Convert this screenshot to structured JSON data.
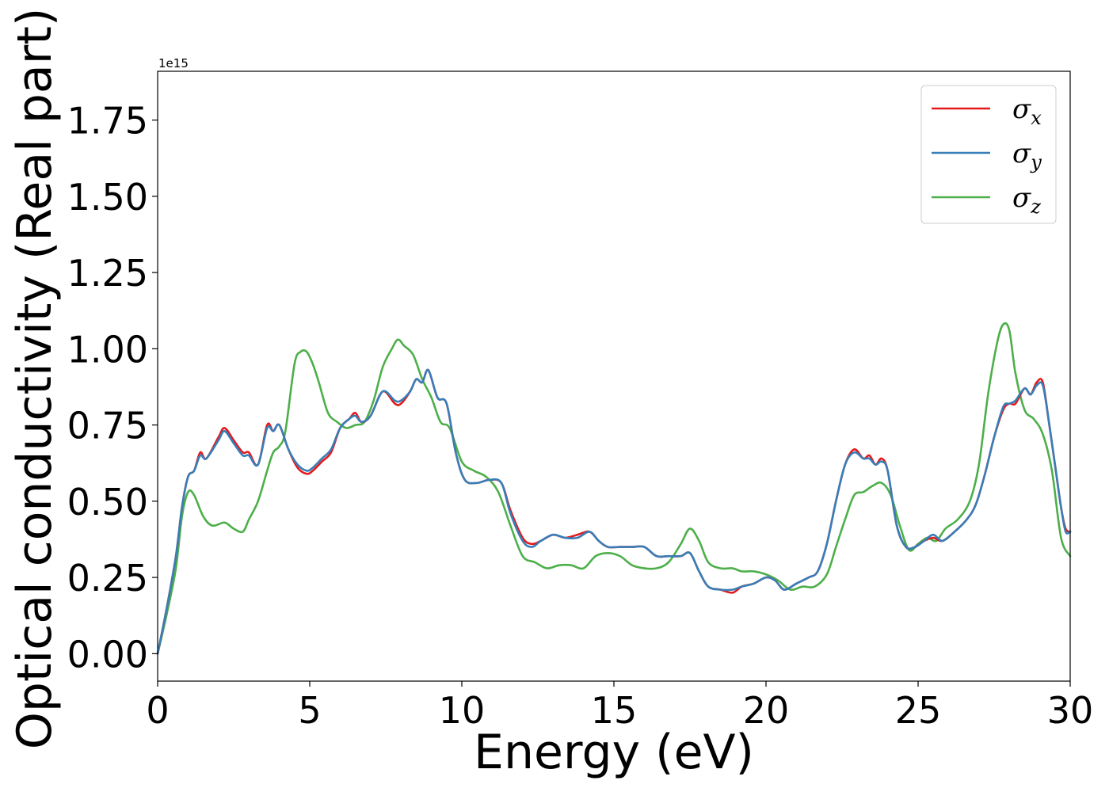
{
  "chart_data": {
    "type": "line",
    "xlabel": "Energy (eV)",
    "ylabel": "Optical conductivity (Real part)",
    "offset_label": "1e15",
    "xlim": [
      0,
      30
    ],
    "ylim": [
      -0.09,
      1.91
    ],
    "xticks": [
      0,
      5,
      10,
      15,
      20,
      25,
      30
    ],
    "xtick_labels": [
      "0",
      "5",
      "10",
      "15",
      "20",
      "25",
      "30"
    ],
    "yticks": [
      0.0,
      0.25,
      0.5,
      0.75,
      1.0,
      1.25,
      1.5,
      1.75
    ],
    "ytick_labels": [
      "0.00",
      "0.25",
      "0.50",
      "0.75",
      "1.00",
      "1.25",
      "1.50",
      "1.75"
    ],
    "grid": false,
    "legend_position": "top-right",
    "series": [
      {
        "name": "σx",
        "legend_base": "σ",
        "legend_sub": "x",
        "color": "#e41a1c",
        "x": [
          0,
          0.3,
          0.6,
          0.8,
          1.0,
          1.2,
          1.4,
          1.6,
          2.0,
          2.2,
          2.5,
          2.8,
          3.0,
          3.3,
          3.6,
          3.8,
          4.0,
          4.3,
          4.6,
          4.9,
          5.1,
          5.4,
          5.7,
          6.0,
          6.3,
          6.5,
          6.7,
          7.0,
          7.4,
          7.8,
          8.0,
          8.3,
          8.5,
          8.7,
          8.9,
          9.2,
          9.5,
          9.8,
          10.1,
          10.5,
          10.9,
          11.3,
          11.6,
          12.0,
          12.3,
          12.6,
          13.0,
          13.4,
          13.8,
          14.2,
          14.5,
          14.8,
          15.2,
          15.6,
          16.0,
          16.4,
          16.8,
          17.2,
          17.5,
          17.8,
          18.1,
          18.5,
          18.9,
          19.2,
          19.6,
          20.0,
          20.3,
          20.6,
          21.0,
          21.4,
          21.7,
          22.0,
          22.3,
          22.6,
          22.9,
          23.2,
          23.4,
          23.6,
          23.8,
          24.0,
          24.3,
          24.6,
          24.9,
          25.2,
          25.5,
          25.8,
          26.2,
          26.6,
          26.9,
          27.2,
          27.5,
          27.8,
          28.0,
          28.2,
          28.5,
          28.7,
          28.9,
          29.1,
          29.3,
          29.5,
          29.7,
          29.85,
          30.0
        ],
        "values": [
          0.0,
          0.15,
          0.32,
          0.48,
          0.58,
          0.6,
          0.66,
          0.64,
          0.71,
          0.74,
          0.7,
          0.66,
          0.66,
          0.62,
          0.75,
          0.73,
          0.75,
          0.67,
          0.61,
          0.59,
          0.6,
          0.63,
          0.66,
          0.74,
          0.77,
          0.79,
          0.76,
          0.78,
          0.86,
          0.82,
          0.82,
          0.86,
          0.9,
          0.89,
          0.93,
          0.84,
          0.82,
          0.66,
          0.57,
          0.56,
          0.57,
          0.56,
          0.47,
          0.38,
          0.36,
          0.37,
          0.39,
          0.38,
          0.39,
          0.4,
          0.37,
          0.35,
          0.35,
          0.35,
          0.35,
          0.32,
          0.32,
          0.32,
          0.33,
          0.27,
          0.22,
          0.21,
          0.2,
          0.22,
          0.23,
          0.25,
          0.24,
          0.21,
          0.23,
          0.25,
          0.27,
          0.36,
          0.5,
          0.62,
          0.67,
          0.64,
          0.65,
          0.62,
          0.64,
          0.6,
          0.42,
          0.35,
          0.35,
          0.37,
          0.38,
          0.37,
          0.4,
          0.44,
          0.49,
          0.59,
          0.71,
          0.8,
          0.82,
          0.82,
          0.87,
          0.85,
          0.89,
          0.89,
          0.76,
          0.62,
          0.48,
          0.41,
          0.4
        ]
      },
      {
        "name": "σy",
        "legend_base": "σ",
        "legend_sub": "y",
        "color": "#377eb8",
        "x": [
          0,
          0.3,
          0.6,
          0.8,
          1.0,
          1.2,
          1.4,
          1.6,
          2.0,
          2.2,
          2.5,
          2.8,
          3.0,
          3.3,
          3.6,
          3.8,
          4.0,
          4.3,
          4.6,
          4.9,
          5.1,
          5.4,
          5.7,
          6.0,
          6.3,
          6.5,
          6.7,
          7.0,
          7.4,
          7.8,
          8.0,
          8.3,
          8.5,
          8.7,
          8.9,
          9.2,
          9.5,
          9.8,
          10.1,
          10.5,
          10.9,
          11.3,
          11.6,
          12.0,
          12.3,
          12.6,
          13.0,
          13.4,
          13.8,
          14.2,
          14.5,
          14.8,
          15.2,
          15.6,
          16.0,
          16.4,
          16.8,
          17.2,
          17.5,
          17.8,
          18.1,
          18.5,
          18.9,
          19.2,
          19.6,
          20.0,
          20.3,
          20.6,
          21.0,
          21.4,
          21.7,
          22.0,
          22.3,
          22.6,
          22.9,
          23.2,
          23.4,
          23.6,
          23.8,
          24.0,
          24.3,
          24.6,
          24.9,
          25.2,
          25.5,
          25.8,
          26.2,
          26.6,
          26.9,
          27.2,
          27.5,
          27.8,
          28.0,
          28.2,
          28.5,
          28.7,
          28.9,
          29.1,
          29.3,
          29.5,
          29.7,
          29.85,
          30.0
        ],
        "values": [
          0.0,
          0.15,
          0.32,
          0.48,
          0.58,
          0.6,
          0.65,
          0.64,
          0.7,
          0.73,
          0.69,
          0.65,
          0.65,
          0.62,
          0.74,
          0.73,
          0.75,
          0.67,
          0.62,
          0.6,
          0.61,
          0.64,
          0.67,
          0.74,
          0.77,
          0.78,
          0.76,
          0.78,
          0.86,
          0.83,
          0.83,
          0.86,
          0.9,
          0.89,
          0.93,
          0.84,
          0.82,
          0.66,
          0.57,
          0.56,
          0.57,
          0.56,
          0.46,
          0.37,
          0.35,
          0.37,
          0.39,
          0.38,
          0.38,
          0.4,
          0.37,
          0.35,
          0.35,
          0.35,
          0.35,
          0.32,
          0.32,
          0.32,
          0.33,
          0.27,
          0.22,
          0.21,
          0.21,
          0.22,
          0.23,
          0.25,
          0.24,
          0.21,
          0.23,
          0.25,
          0.27,
          0.36,
          0.5,
          0.62,
          0.66,
          0.64,
          0.64,
          0.62,
          0.63,
          0.6,
          0.42,
          0.35,
          0.35,
          0.37,
          0.39,
          0.37,
          0.4,
          0.44,
          0.49,
          0.59,
          0.71,
          0.81,
          0.82,
          0.83,
          0.87,
          0.85,
          0.88,
          0.88,
          0.76,
          0.62,
          0.48,
          0.4,
          0.4
        ]
      },
      {
        "name": "σz",
        "legend_base": "σ",
        "legend_sub": "z",
        "color": "#4daf4a",
        "x": [
          0,
          0.3,
          0.6,
          0.8,
          1.0,
          1.2,
          1.5,
          1.8,
          2.2,
          2.5,
          2.8,
          3.0,
          3.3,
          3.6,
          3.8,
          4.0,
          4.2,
          4.5,
          4.7,
          4.9,
          5.1,
          5.3,
          5.6,
          5.9,
          6.2,
          6.5,
          6.8,
          7.1,
          7.4,
          7.7,
          7.9,
          8.1,
          8.4,
          8.7,
          9.0,
          9.3,
          9.6,
          10.0,
          10.4,
          10.8,
          11.2,
          11.6,
          12.0,
          12.4,
          12.8,
          13.2,
          13.6,
          14.0,
          14.4,
          14.8,
          15.2,
          15.6,
          16.0,
          16.4,
          16.8,
          17.2,
          17.5,
          17.8,
          18.1,
          18.5,
          18.9,
          19.2,
          19.6,
          20.0,
          20.4,
          20.8,
          21.2,
          21.6,
          22.0,
          22.3,
          22.6,
          22.9,
          23.2,
          23.5,
          23.8,
          24.1,
          24.4,
          24.7,
          25.0,
          25.3,
          25.6,
          25.9,
          26.3,
          26.7,
          27.0,
          27.3,
          27.6,
          27.8,
          28.0,
          28.2,
          28.5,
          28.8,
          29.1,
          29.4,
          29.7,
          30.0
        ],
        "values": [
          0.0,
          0.13,
          0.28,
          0.45,
          0.53,
          0.52,
          0.45,
          0.42,
          0.43,
          0.41,
          0.4,
          0.44,
          0.5,
          0.6,
          0.66,
          0.68,
          0.73,
          0.95,
          0.99,
          0.99,
          0.95,
          0.89,
          0.79,
          0.76,
          0.74,
          0.75,
          0.76,
          0.83,
          0.94,
          1.0,
          1.03,
          1.01,
          0.98,
          0.9,
          0.84,
          0.76,
          0.74,
          0.63,
          0.6,
          0.58,
          0.53,
          0.42,
          0.32,
          0.3,
          0.28,
          0.29,
          0.29,
          0.28,
          0.32,
          0.33,
          0.32,
          0.29,
          0.28,
          0.28,
          0.3,
          0.36,
          0.41,
          0.37,
          0.3,
          0.28,
          0.28,
          0.27,
          0.27,
          0.26,
          0.24,
          0.21,
          0.22,
          0.22,
          0.26,
          0.35,
          0.44,
          0.52,
          0.53,
          0.55,
          0.56,
          0.52,
          0.42,
          0.34,
          0.36,
          0.38,
          0.37,
          0.41,
          0.44,
          0.5,
          0.62,
          0.85,
          1.02,
          1.08,
          1.06,
          0.92,
          0.8,
          0.77,
          0.72,
          0.6,
          0.38,
          0.32
        ]
      }
    ]
  }
}
